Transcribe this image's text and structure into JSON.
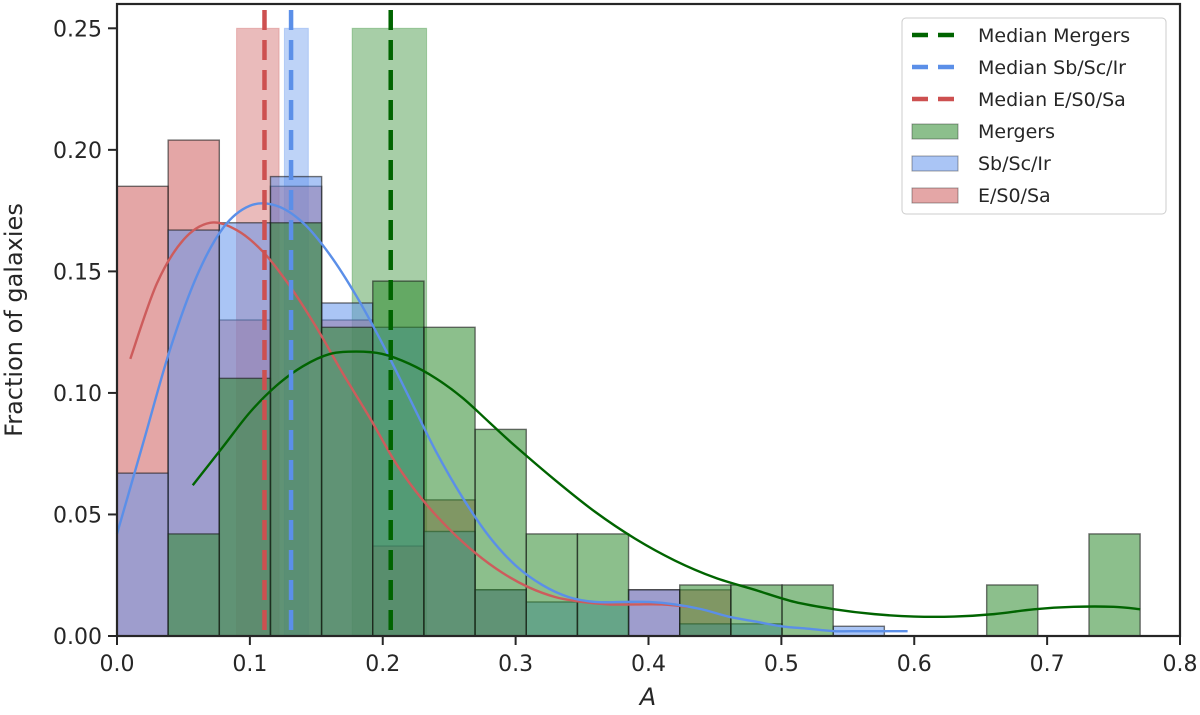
{
  "chart_data": {
    "type": "bar",
    "subtype": "overlaid-histogram-with-kde",
    "title": "",
    "xlabel": "A",
    "ylabel": "Fraction of galaxies",
    "xlim": [
      0.0,
      0.8
    ],
    "ylim": [
      0.0,
      0.26
    ],
    "xticks": [
      "0.0",
      "0.1",
      "0.2",
      "0.3",
      "0.4",
      "0.5",
      "0.6",
      "0.7",
      "0.8"
    ],
    "yticks": [
      "0.00",
      "0.05",
      "0.10",
      "0.15",
      "0.20",
      "0.25"
    ],
    "grid": false,
    "legend_position": "upper right",
    "bin_edges": [
      0.0,
      0.0385,
      0.077,
      0.1155,
      0.154,
      0.1925,
      0.231,
      0.2695,
      0.308,
      0.3465,
      0.385,
      0.4235,
      0.462,
      0.5005,
      0.539,
      0.5775,
      0.616,
      0.6545,
      0.693,
      0.7315,
      0.77
    ],
    "series": [
      {
        "name": "E/S0/Sa",
        "color": "#cd5c5c",
        "values": [
          0.185,
          0.204,
          0.13,
          0.185,
          0.13,
          0.037,
          0.056,
          0.019,
          0,
          0,
          0.019,
          0.019,
          0,
          0,
          0,
          0,
          0,
          0,
          0,
          0
        ],
        "median": 0.111,
        "median_band": [
          0.09,
          0.122
        ],
        "kde": [
          [
            0.01,
            0.114
          ],
          [
            0.03,
            0.145
          ],
          [
            0.05,
            0.163
          ],
          [
            0.07,
            0.17
          ],
          [
            0.09,
            0.167
          ],
          [
            0.11,
            0.158
          ],
          [
            0.13,
            0.144
          ],
          [
            0.15,
            0.127
          ],
          [
            0.17,
            0.108
          ],
          [
            0.19,
            0.09
          ],
          [
            0.21,
            0.071
          ],
          [
            0.23,
            0.056
          ],
          [
            0.25,
            0.044
          ],
          [
            0.27,
            0.034
          ],
          [
            0.29,
            0.026
          ],
          [
            0.31,
            0.02
          ],
          [
            0.33,
            0.016
          ],
          [
            0.35,
            0.014
          ],
          [
            0.37,
            0.013
          ],
          [
            0.39,
            0.013
          ],
          [
            0.41,
            0.013
          ],
          [
            0.43,
            0.012
          ]
        ]
      },
      {
        "name": "Sb/Sc/Ir",
        "color": "#6495ed",
        "values": [
          0.067,
          0.167,
          0.17,
          0.189,
          0.137,
          0.127,
          0.043,
          0.019,
          0.014,
          0.014,
          0.019,
          0.005,
          0.005,
          0,
          0.004,
          0,
          0,
          0,
          0,
          0
        ],
        "median": 0.131,
        "median_band": [
          0.126,
          0.144
        ],
        "kde": [
          [
            0.0,
            0.042
          ],
          [
            0.02,
            0.08
          ],
          [
            0.04,
            0.118
          ],
          [
            0.06,
            0.148
          ],
          [
            0.08,
            0.168
          ],
          [
            0.1,
            0.177
          ],
          [
            0.12,
            0.177
          ],
          [
            0.14,
            0.17
          ],
          [
            0.16,
            0.157
          ],
          [
            0.18,
            0.14
          ],
          [
            0.2,
            0.12
          ],
          [
            0.22,
            0.098
          ],
          [
            0.24,
            0.076
          ],
          [
            0.26,
            0.057
          ],
          [
            0.28,
            0.041
          ],
          [
            0.3,
            0.029
          ],
          [
            0.32,
            0.021
          ],
          [
            0.34,
            0.016
          ],
          [
            0.36,
            0.014
          ],
          [
            0.38,
            0.014
          ],
          [
            0.4,
            0.014
          ],
          [
            0.42,
            0.013
          ],
          [
            0.44,
            0.011
          ],
          [
            0.46,
            0.008
          ],
          [
            0.48,
            0.006
          ],
          [
            0.5,
            0.004
          ],
          [
            0.52,
            0.003
          ],
          [
            0.54,
            0.002
          ],
          [
            0.56,
            0.002
          ],
          [
            0.58,
            0.002
          ],
          [
            0.595,
            0.002
          ]
        ]
      },
      {
        "name": "Mergers",
        "color": "#2e8b2e",
        "values": [
          0,
          0.042,
          0.106,
          0.17,
          0.127,
          0.146,
          0.127,
          0.085,
          0.042,
          0.042,
          0,
          0.021,
          0.021,
          0.021,
          0,
          0,
          0,
          0.021,
          0,
          0.042
        ],
        "median": 0.206,
        "median_band": [
          0.177,
          0.233
        ],
        "kde": [
          [
            0.057,
            0.062
          ],
          [
            0.08,
            0.078
          ],
          [
            0.1,
            0.092
          ],
          [
            0.12,
            0.103
          ],
          [
            0.14,
            0.111
          ],
          [
            0.16,
            0.116
          ],
          [
            0.18,
            0.117
          ],
          [
            0.2,
            0.116
          ],
          [
            0.22,
            0.112
          ],
          [
            0.24,
            0.106
          ],
          [
            0.26,
            0.098
          ],
          [
            0.28,
            0.088
          ],
          [
            0.3,
            0.078
          ],
          [
            0.33,
            0.064
          ],
          [
            0.36,
            0.051
          ],
          [
            0.39,
            0.04
          ],
          [
            0.42,
            0.031
          ],
          [
            0.45,
            0.024
          ],
          [
            0.48,
            0.019
          ],
          [
            0.51,
            0.014
          ],
          [
            0.54,
            0.011
          ],
          [
            0.57,
            0.009
          ],
          [
            0.6,
            0.008
          ],
          [
            0.63,
            0.008
          ],
          [
            0.66,
            0.009
          ],
          [
            0.69,
            0.011
          ],
          [
            0.72,
            0.012
          ],
          [
            0.75,
            0.012
          ],
          [
            0.77,
            0.011
          ]
        ]
      }
    ],
    "medians": [
      {
        "name": "Median Mergers",
        "value": 0.206,
        "color": "#006400"
      },
      {
        "name": "Median Sb/Sc/Ir",
        "value": 0.131,
        "color": "#5b8fe8"
      },
      {
        "name": "Median E/S0/Sa",
        "value": 0.111,
        "color": "#cd5050"
      }
    ]
  },
  "legend": {
    "items": [
      {
        "label": "Median Mergers",
        "kind": "dash",
        "color": "#006400"
      },
      {
        "label": "Median Sb/Sc/Ir",
        "kind": "dash",
        "color": "#5b8fe8"
      },
      {
        "label": "Median E/S0/Sa",
        "kind": "dash",
        "color": "#cd5050"
      },
      {
        "label": "Mergers",
        "kind": "patch",
        "color": "#2e8b2e"
      },
      {
        "label": "Sb/Sc/Ir",
        "kind": "patch",
        "color": "#6495ed"
      },
      {
        "label": "E/S0/Sa",
        "kind": "patch",
        "color": "#cd5c5c"
      }
    ]
  }
}
